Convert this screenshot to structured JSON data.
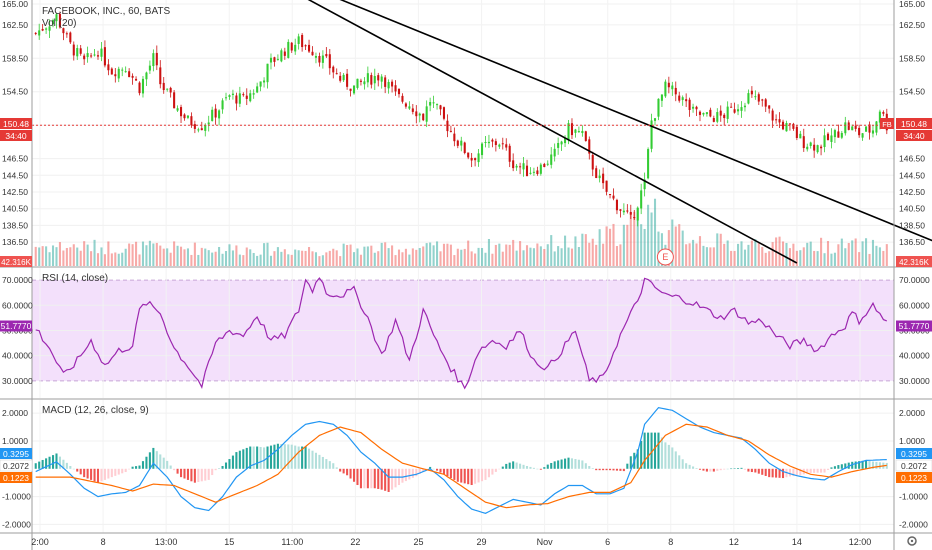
{
  "header": {
    "symbol_title": "FACEBOOK, INC., 60, BATS",
    "volume_label": "Vol (20)",
    "earnings_marker": "E"
  },
  "colors": {
    "up": "#26a69a",
    "down": "#ef5350",
    "candle_up": "#33cc33",
    "candle_down": "#cc1111",
    "rsi": "#9c27b0",
    "rsi_band": "#f3e0fb",
    "macd_line": "#2196f3",
    "signal_line": "#ff6d00",
    "price_line": "#e53935",
    "channel": "#000000"
  },
  "price_panel": {
    "ylim": [
      134,
      165
    ],
    "ticks": [
      "165.00",
      "162.50",
      "158.50",
      "154.50",
      "150.50",
      "146.50",
      "144.50",
      "142.50",
      "140.50",
      "138.50",
      "136.50"
    ],
    "tick_values": [
      165,
      162.5,
      158.5,
      154.5,
      150.5,
      146.5,
      144.5,
      142.5,
      140.5,
      138.5,
      136.5
    ],
    "last_price": "150.48",
    "last_price_value": 150.48,
    "countdown": "34:40",
    "symbol_tag": "FB",
    "volume_badge": "42.316K"
  },
  "rsi_panel": {
    "label": "RSI (14, close)",
    "ylim": [
      24,
      74
    ],
    "ticks": [
      "70.0000",
      "60.0000",
      "50.0000",
      "40.0000",
      "30.0000"
    ],
    "tick_values": [
      70,
      60,
      50,
      40,
      30
    ],
    "band": [
      30,
      70
    ],
    "value": "51.7770",
    "value_num": 51.777
  },
  "macd_panel": {
    "label": "MACD (12, 26, close, 9)",
    "ylim": [
      -2.2,
      2.4
    ],
    "ticks": [
      "2.0000",
      "1.0000",
      "-1.0000",
      "-2.0000"
    ],
    "tick_values": [
      2,
      1,
      -1,
      -2
    ],
    "macd_value": "0.3295",
    "hist_value": "0.2072",
    "signal_value": "0.1223"
  },
  "x_axis": {
    "labels": [
      "2:00",
      "8",
      "13:00",
      "15",
      "11:00",
      "22",
      "25",
      "29",
      "Nov",
      "6",
      "8",
      "12",
      "14",
      "12:00"
    ]
  },
  "chart_data": {
    "type": "candlestick",
    "title": "FACEBOOK, INC., 60, BATS",
    "bars": 152,
    "close_path": [
      [
        0,
        161.5
      ],
      [
        6,
        163.5
      ],
      [
        10,
        160
      ],
      [
        14,
        158
      ],
      [
        18,
        159.5
      ],
      [
        22,
        157
      ],
      [
        26,
        157.5
      ],
      [
        30,
        155
      ],
      [
        34,
        158.5
      ],
      [
        36,
        155.5
      ],
      [
        40,
        153
      ],
      [
        44,
        151
      ],
      [
        48,
        150.5
      ],
      [
        52,
        152
      ],
      [
        56,
        154
      ],
      [
        60,
        153.5
      ],
      [
        64,
        155
      ],
      [
        68,
        158
      ],
      [
        72,
        159.5
      ],
      [
        76,
        160.5
      ],
      [
        80,
        159.5
      ],
      [
        84,
        158
      ],
      [
        88,
        156
      ],
      [
        92,
        155
      ],
      [
        96,
        156
      ],
      [
        100,
        156.5
      ],
      [
        104,
        154
      ],
      [
        108,
        153
      ],
      [
        112,
        151.5
      ],
      [
        114,
        153.5
      ],
      [
        118,
        151
      ],
      [
        122,
        148.5
      ],
      [
        126,
        146.5
      ],
      [
        130,
        148
      ],
      [
        134,
        148.5
      ],
      [
        138,
        146
      ],
      [
        142,
        145
      ],
      [
        146,
        145.5
      ],
      [
        150,
        147
      ],
      [
        154,
        150
      ],
      [
        158,
        149.5
      ],
      [
        160,
        146.5
      ],
      [
        164,
        143
      ],
      [
        168,
        141
      ],
      [
        172,
        139
      ],
      [
        176,
        143.5
      ],
      [
        178,
        151
      ],
      [
        182,
        155
      ],
      [
        186,
        154
      ],
      [
        190,
        152
      ],
      [
        194,
        151.5
      ],
      [
        198,
        151.5
      ],
      [
        202,
        152.5
      ],
      [
        206,
        154
      ],
      [
        210,
        153
      ],
      [
        214,
        151
      ],
      [
        218,
        150
      ],
      [
        222,
        148.5
      ],
      [
        226,
        148
      ],
      [
        230,
        149
      ],
      [
        234,
        150.5
      ],
      [
        238,
        149.5
      ],
      [
        242,
        150
      ],
      [
        244,
        152.5
      ],
      [
        246,
        150.5
      ]
    ],
    "volume_path": [
      [
        0,
        20
      ],
      [
        40,
        18
      ],
      [
        80,
        16
      ],
      [
        120,
        18
      ],
      [
        160,
        24
      ],
      [
        170,
        35
      ],
      [
        176,
        55
      ],
      [
        178,
        60
      ],
      [
        182,
        35
      ],
      [
        200,
        22
      ],
      [
        240,
        20
      ]
    ],
    "rsi_path": [
      [
        0,
        51
      ],
      [
        4,
        43
      ],
      [
        8,
        32
      ],
      [
        12,
        38
      ],
      [
        16,
        46
      ],
      [
        20,
        36
      ],
      [
        24,
        42
      ],
      [
        28,
        44
      ],
      [
        30,
        58
      ],
      [
        32,
        61
      ],
      [
        36,
        57
      ],
      [
        40,
        43
      ],
      [
        44,
        36
      ],
      [
        48,
        28
      ],
      [
        52,
        45
      ],
      [
        56,
        50
      ],
      [
        60,
        48
      ],
      [
        64,
        56
      ],
      [
        68,
        46
      ],
      [
        72,
        48
      ],
      [
        76,
        58
      ],
      [
        78,
        70
      ],
      [
        80,
        66
      ],
      [
        82,
        72
      ],
      [
        84,
        65
      ],
      [
        88,
        64
      ],
      [
        92,
        66
      ],
      [
        96,
        55
      ],
      [
        100,
        40
      ],
      [
        104,
        54
      ],
      [
        108,
        38
      ],
      [
        112,
        58
      ],
      [
        116,
        45
      ],
      [
        120,
        35
      ],
      [
        124,
        27
      ],
      [
        128,
        42
      ],
      [
        132,
        46
      ],
      [
        136,
        44
      ],
      [
        140,
        50
      ],
      [
        144,
        38
      ],
      [
        148,
        35
      ],
      [
        152,
        42
      ],
      [
        156,
        50
      ],
      [
        160,
        30
      ],
      [
        164,
        31
      ],
      [
        168,
        45
      ],
      [
        170,
        51
      ],
      [
        174,
        62
      ],
      [
        176,
        70
      ],
      [
        178,
        68
      ],
      [
        182,
        64
      ],
      [
        186,
        63
      ],
      [
        190,
        61
      ],
      [
        194,
        58
      ],
      [
        198,
        55
      ],
      [
        202,
        58
      ],
      [
        206,
        53
      ],
      [
        210,
        54
      ],
      [
        214,
        48
      ],
      [
        218,
        44
      ],
      [
        222,
        46
      ],
      [
        226,
        42
      ],
      [
        230,
        48
      ],
      [
        234,
        52
      ],
      [
        236,
        57
      ],
      [
        238,
        54
      ],
      [
        242,
        60
      ],
      [
        246,
        53
      ]
    ],
    "macd_path": [
      [
        0,
        -0.1
      ],
      [
        6,
        0.25
      ],
      [
        10,
        -0.2
      ],
      [
        14,
        -0.7
      ],
      [
        18,
        -1.0
      ],
      [
        22,
        -0.9
      ],
      [
        26,
        -0.85
      ],
      [
        30,
        -0.6
      ],
      [
        34,
        0.2
      ],
      [
        38,
        -0.3
      ],
      [
        42,
        -1.0
      ],
      [
        46,
        -1.4
      ],
      [
        50,
        -1.5
      ],
      [
        54,
        -1.0
      ],
      [
        58,
        -0.3
      ],
      [
        62,
        0.1
      ],
      [
        66,
        0.3
      ],
      [
        70,
        0.7
      ],
      [
        74,
        1.2
      ],
      [
        78,
        1.6
      ],
      [
        82,
        1.7
      ],
      [
        86,
        1.6
      ],
      [
        90,
        1.2
      ],
      [
        94,
        0.6
      ],
      [
        98,
        0.2
      ],
      [
        102,
        -0.3
      ],
      [
        106,
        -0.3
      ],
      [
        110,
        -0.2
      ],
      [
        114,
        0.0
      ],
      [
        118,
        -0.4
      ],
      [
        122,
        -1.0
      ],
      [
        126,
        -1.45
      ],
      [
        130,
        -1.6
      ],
      [
        134,
        -1.35
      ],
      [
        138,
        -1.1
      ],
      [
        142,
        -1.2
      ],
      [
        146,
        -1.3
      ],
      [
        150,
        -0.9
      ],
      [
        154,
        -0.6
      ],
      [
        158,
        -0.6
      ],
      [
        162,
        -0.9
      ],
      [
        166,
        -0.9
      ],
      [
        170,
        -0.7
      ],
      [
        174,
        0.6
      ],
      [
        176,
        1.6
      ],
      [
        180,
        2.2
      ],
      [
        184,
        2.1
      ],
      [
        188,
        1.8
      ],
      [
        192,
        1.5
      ],
      [
        196,
        1.3
      ],
      [
        200,
        1.2
      ],
      [
        204,
        1.1
      ],
      [
        208,
        0.7
      ],
      [
        212,
        0.2
      ],
      [
        216,
        -0.1
      ],
      [
        220,
        -0.25
      ],
      [
        224,
        -0.35
      ],
      [
        228,
        -0.4
      ],
      [
        232,
        -0.1
      ],
      [
        236,
        0.15
      ],
      [
        240,
        0.3
      ],
      [
        246,
        0.33
      ]
    ],
    "signal_path": [
      [
        0,
        -0.3
      ],
      [
        10,
        -0.3
      ],
      [
        16,
        -0.45
      ],
      [
        22,
        -0.6
      ],
      [
        28,
        -0.8
      ],
      [
        34,
        -0.55
      ],
      [
        40,
        -0.6
      ],
      [
        46,
        -0.9
      ],
      [
        52,
        -1.2
      ],
      [
        58,
        -0.9
      ],
      [
        64,
        -0.6
      ],
      [
        70,
        -0.2
      ],
      [
        76,
        0.6
      ],
      [
        82,
        1.2
      ],
      [
        88,
        1.5
      ],
      [
        94,
        1.3
      ],
      [
        100,
        0.7
      ],
      [
        106,
        0.2
      ],
      [
        112,
        0.0
      ],
      [
        118,
        -0.2
      ],
      [
        124,
        -0.7
      ],
      [
        130,
        -1.2
      ],
      [
        136,
        -1.4
      ],
      [
        142,
        -1.3
      ],
      [
        148,
        -1.25
      ],
      [
        154,
        -1.0
      ],
      [
        160,
        -0.85
      ],
      [
        166,
        -0.85
      ],
      [
        172,
        -0.5
      ],
      [
        176,
        0.3
      ],
      [
        182,
        1.2
      ],
      [
        188,
        1.6
      ],
      [
        194,
        1.5
      ],
      [
        200,
        1.2
      ],
      [
        206,
        1.0
      ],
      [
        212,
        0.5
      ],
      [
        218,
        0.1
      ],
      [
        224,
        -0.2
      ],
      [
        230,
        -0.3
      ],
      [
        236,
        -0.1
      ],
      [
        242,
        0.05
      ],
      [
        246,
        0.12
      ]
    ],
    "channel_lines": [
      [
        [
          73.5,
          168
        ],
        [
          275,
          134
        ]
      ],
      [
        [
          67.8,
          168
        ],
        [
          220,
          134
        ]
      ]
    ],
    "earnings_bar": 182,
    "xlabel": "",
    "ylabel": ""
  }
}
